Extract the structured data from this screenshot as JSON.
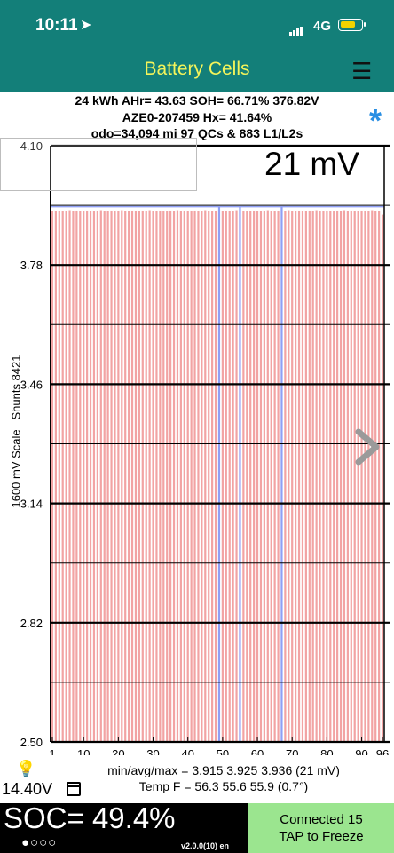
{
  "status_bar": {
    "time": "10:11",
    "location_icon": "location-arrow-icon",
    "network": "4G",
    "battery_color": "#f1d400"
  },
  "header": {
    "title": "Battery Cells",
    "menu_icon": "hamburger-icon",
    "bg": "#137f79",
    "title_color": "#f4f45a"
  },
  "summary": {
    "line1": "24 kWh  AHr= 43.63  SOH= 66.71%   376.82V",
    "line2": "AZE0-207459   Hx= 41.64%",
    "line3": "odo=34,094 mi 97 QCs & 883 L1/L2s"
  },
  "star_icon": "asterisk-icon",
  "spread_label": "21 mV",
  "chart_data": {
    "type": "bar",
    "ylabel": "1600 mV Scale   Shunts 8421",
    "ylim": [
      2.5,
      4.1
    ],
    "yticks": [
      "4.10",
      "3.78",
      "3.46",
      "3.14",
      "2.82",
      "2.50"
    ],
    "xticks": [
      "1",
      "10",
      "20",
      "30",
      "40",
      "50",
      "60",
      "70",
      "80",
      "90",
      "96"
    ],
    "bar_color": "#f2a3a3",
    "shunt_color": "#8f9ff5",
    "cell_count": 96,
    "shunt_cells": [
      49,
      55,
      67
    ],
    "values": [
      3.926,
      3.924,
      3.926,
      3.925,
      3.924,
      3.927,
      3.925,
      3.926,
      3.924,
      3.925,
      3.926,
      3.924,
      3.925,
      3.926,
      3.927,
      3.924,
      3.925,
      3.926,
      3.924,
      3.925,
      3.927,
      3.925,
      3.924,
      3.926,
      3.925,
      3.924,
      3.926,
      3.925,
      3.927,
      3.924,
      3.925,
      3.926,
      3.924,
      3.925,
      3.926,
      3.924,
      3.927,
      3.925,
      3.926,
      3.924,
      3.925,
      3.926,
      3.924,
      3.925,
      3.927,
      3.925,
      3.924,
      3.926,
      3.936,
      3.924,
      3.926,
      3.925,
      3.924,
      3.927,
      3.936,
      3.926,
      3.924,
      3.925,
      3.926,
      3.924,
      3.925,
      3.926,
      3.927,
      3.924,
      3.925,
      3.926,
      3.936,
      3.925,
      3.927,
      3.925,
      3.924,
      3.926,
      3.925,
      3.924,
      3.926,
      3.925,
      3.927,
      3.924,
      3.925,
      3.926,
      3.924,
      3.925,
      3.926,
      3.924,
      3.927,
      3.925,
      3.926,
      3.924,
      3.925,
      3.926,
      3.924,
      3.925,
      3.927,
      3.925,
      3.924,
      3.915
    ]
  },
  "stats": {
    "minavgmax": "min/avg/max = 3.915 3.925 3.936  (21 mV)",
    "temp": "Temp F = 56.3  55.6  55.9  (0.7°)"
  },
  "pack_voltage": "14.40V",
  "soc_text": "SOC= 49.4%",
  "page_dots": "●○○○",
  "version": "v2.0.0(10) en",
  "connected_line1": "Connected 15",
  "connected_line2": "TAP to Freeze"
}
